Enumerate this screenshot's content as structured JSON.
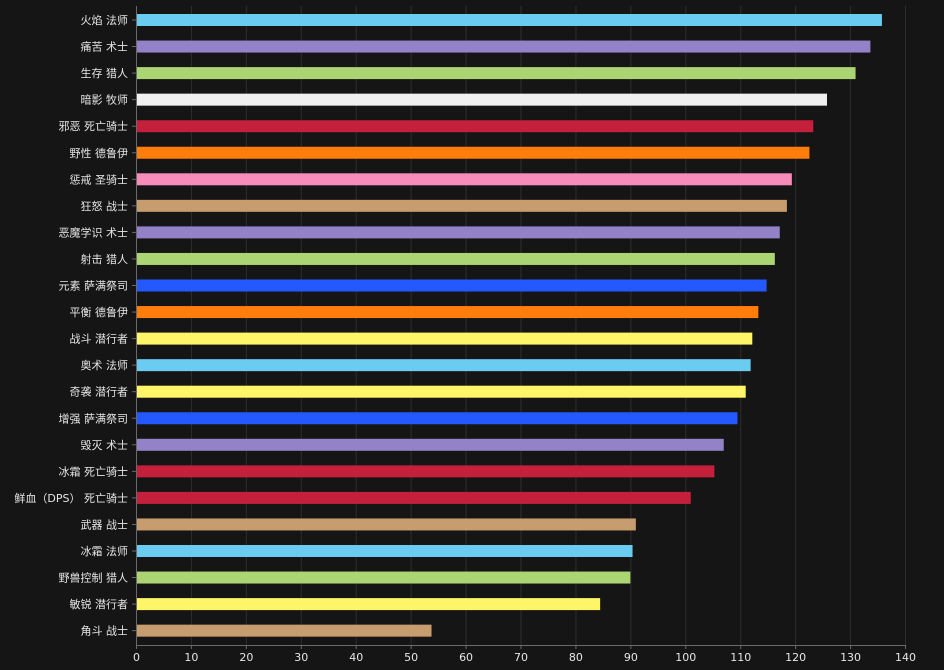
{
  "chart_data": {
    "type": "bar",
    "orientation": "horizontal",
    "title": "",
    "xlabel": "",
    "ylabel": "",
    "xlim": [
      0,
      140
    ],
    "xticks": [
      0,
      10,
      20,
      30,
      40,
      50,
      60,
      70,
      80,
      90,
      100,
      110,
      120,
      130,
      140
    ],
    "grid": true,
    "bars": [
      {
        "label": "火焰 法师",
        "value": 135.8,
        "color": "#69CCF0"
      },
      {
        "label": "痛苦 术士",
        "value": 133.7,
        "color": "#9482C9"
      },
      {
        "label": "生存 猎人",
        "value": 131.0,
        "color": "#ABD473"
      },
      {
        "label": "暗影 牧师",
        "value": 125.8,
        "color": "#F0F0F0"
      },
      {
        "label": "邪恶 死亡骑士",
        "value": 123.3,
        "color": "#C41F3B"
      },
      {
        "label": "野性 德鲁伊",
        "value": 122.6,
        "color": "#FF7D0A"
      },
      {
        "label": "惩戒 圣骑士",
        "value": 119.4,
        "color": "#F58CBA"
      },
      {
        "label": "狂怒 战士",
        "value": 118.5,
        "color": "#C79C6E"
      },
      {
        "label": "恶魔学识 术士",
        "value": 117.2,
        "color": "#9482C9"
      },
      {
        "label": "射击 猎人",
        "value": 116.3,
        "color": "#ABD473"
      },
      {
        "label": "元素 萨满祭司",
        "value": 114.8,
        "color": "#2459FF"
      },
      {
        "label": "平衡 德鲁伊",
        "value": 113.3,
        "color": "#FF7D0A"
      },
      {
        "label": "战斗 潜行者",
        "value": 112.2,
        "color": "#FFF569"
      },
      {
        "label": "奥术 法师",
        "value": 111.9,
        "color": "#69CCF0"
      },
      {
        "label": "奇袭 潜行者",
        "value": 111.0,
        "color": "#FFF569"
      },
      {
        "label": "增强 萨满祭司",
        "value": 109.5,
        "color": "#2459FF"
      },
      {
        "label": "毁灭 术士",
        "value": 107.0,
        "color": "#9482C9"
      },
      {
        "label": "冰霜 死亡骑士",
        "value": 105.3,
        "color": "#C41F3B"
      },
      {
        "label": "鲜血（DPS） 死亡骑士",
        "value": 101.0,
        "color": "#C41F3B"
      },
      {
        "label": "武器 战士",
        "value": 91.0,
        "color": "#C79C6E"
      },
      {
        "label": "冰霜 法师",
        "value": 90.4,
        "color": "#69CCF0"
      },
      {
        "label": "野兽控制 猎人",
        "value": 90.0,
        "color": "#ABD473"
      },
      {
        "label": "敏锐 潜行者",
        "value": 84.5,
        "color": "#FFF569"
      },
      {
        "label": "角斗 战士",
        "value": 53.8,
        "color": "#C79C6E"
      }
    ]
  }
}
